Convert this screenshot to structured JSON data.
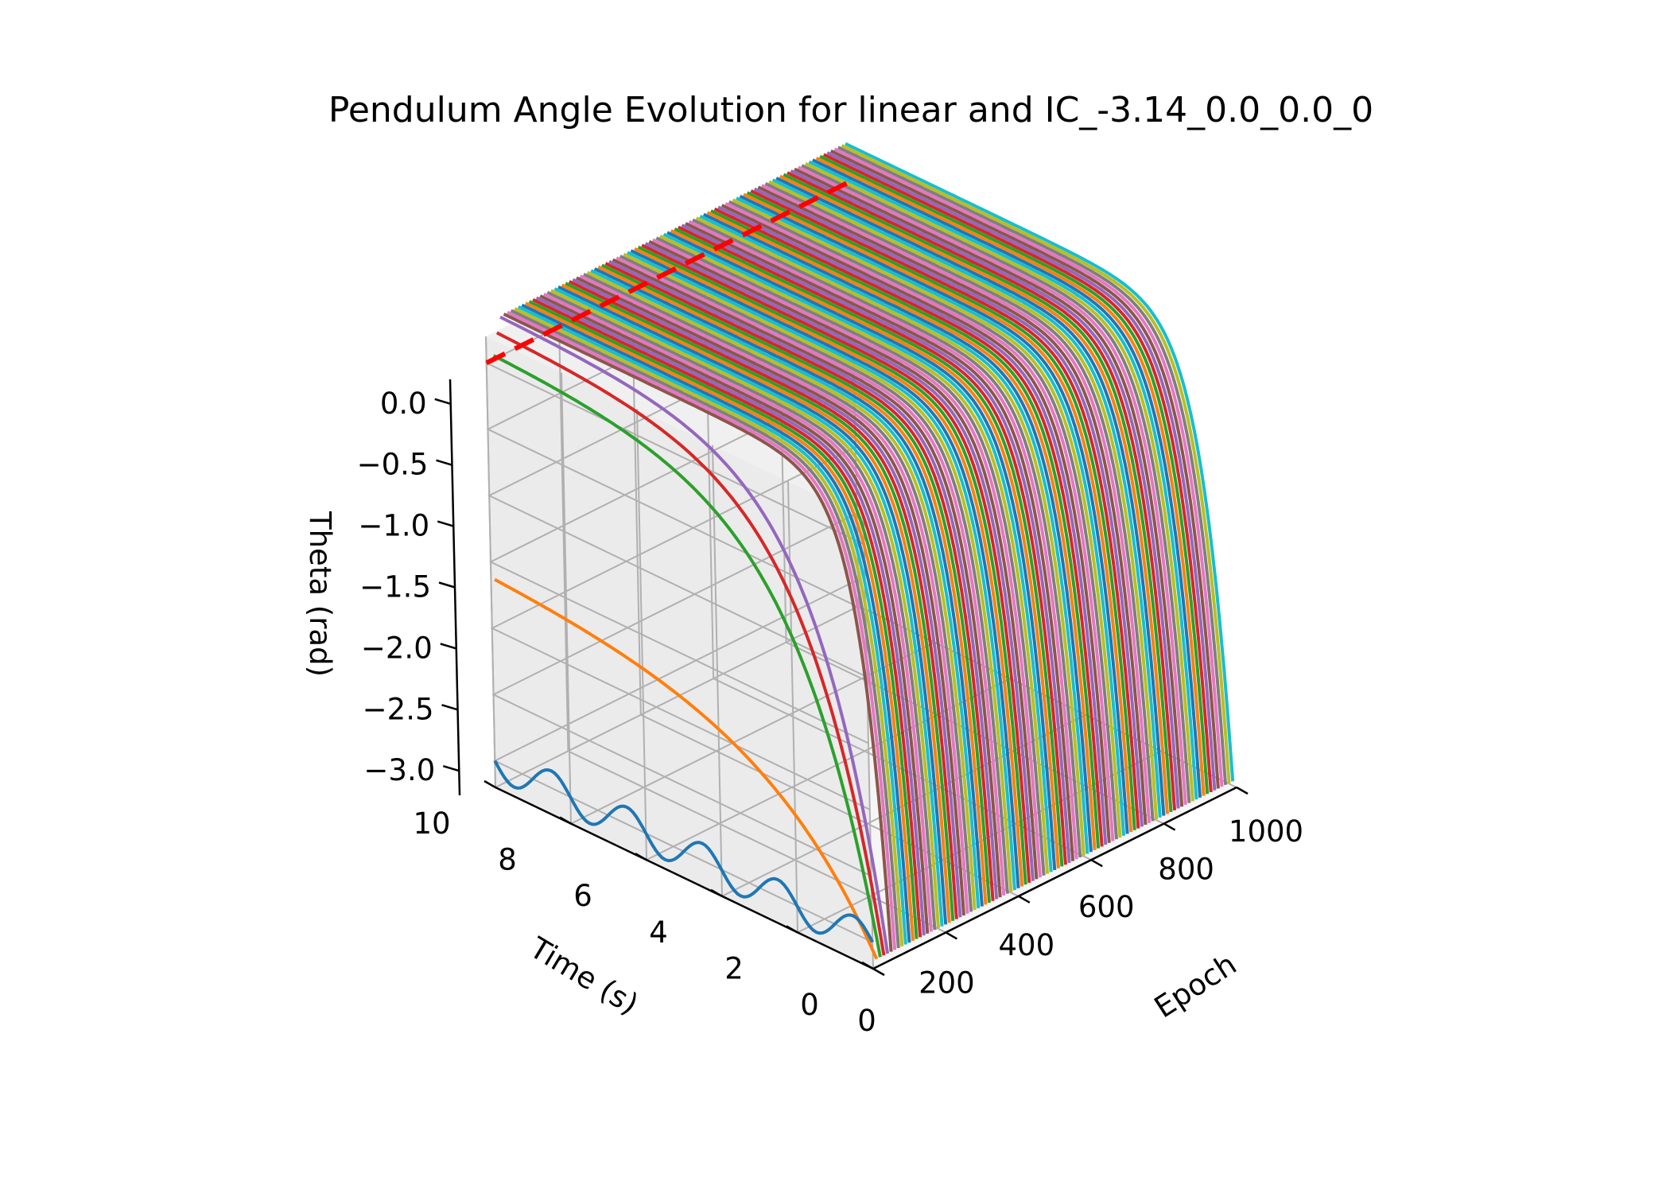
{
  "chart_data": {
    "type": "line",
    "projection": "3d",
    "title": "Pendulum Angle Evolution for linear and IC_-3.14_0.0_0.0_0",
    "xlabel": "Epoch",
    "ylabel": "Time (s)",
    "zlabel": "Theta (rad)",
    "epoch_ticks": [
      "0",
      "200",
      "400",
      "600",
      "800",
      "1000"
    ],
    "time_ticks": [
      "0",
      "2",
      "4",
      "6",
      "8",
      "10"
    ],
    "theta_ticks": [
      "0.0",
      "−0.5",
      "−1.0",
      "−1.5",
      "−2.0",
      "−2.5",
      "−3.0"
    ],
    "epoch_range": [
      0,
      1000
    ],
    "time_range": [
      0,
      10
    ],
    "theta_range": [
      -3.2,
      0.2
    ],
    "grid": true,
    "legend": "none",
    "initial_angle": -3.14,
    "target_angle": 0.0,
    "epoch_count": 100,
    "epoch_step": 10,
    "reference_line": {
      "theta": 0.0,
      "color": "#ff0000",
      "style": "dashed"
    },
    "palette": [
      "#1f77b4",
      "#ff7f0e",
      "#2ca02c",
      "#d62728",
      "#9467bd",
      "#8c564b",
      "#e377c2",
      "#7f7f7f",
      "#bcbd22",
      "#17becf"
    ],
    "series": [
      {
        "epoch": 0,
        "type": "oscillation",
        "center": -3.0,
        "amplitude": 0.13,
        "period": 2.0
      },
      {
        "epoch": 10,
        "type": "rise",
        "start_theta": -3.14,
        "end_theta": -1.6,
        "rate": 0.35
      },
      {
        "epoch": 20,
        "type": "rise",
        "start_theta": -3.14,
        "end_theta": 0.05,
        "rate": 0.5
      },
      {
        "epoch": 30,
        "type": "rise",
        "start_theta": -3.14,
        "end_theta": 0.2,
        "rate": 0.55
      },
      {
        "epoch": 40,
        "type": "rise",
        "start_theta": -3.14,
        "end_theta": 0.3,
        "rate": 0.6
      },
      {
        "epoch": "50-990",
        "type": "rise",
        "start_theta": -3.14,
        "end_theta": 0.3,
        "rate": 1.6
      }
    ]
  }
}
